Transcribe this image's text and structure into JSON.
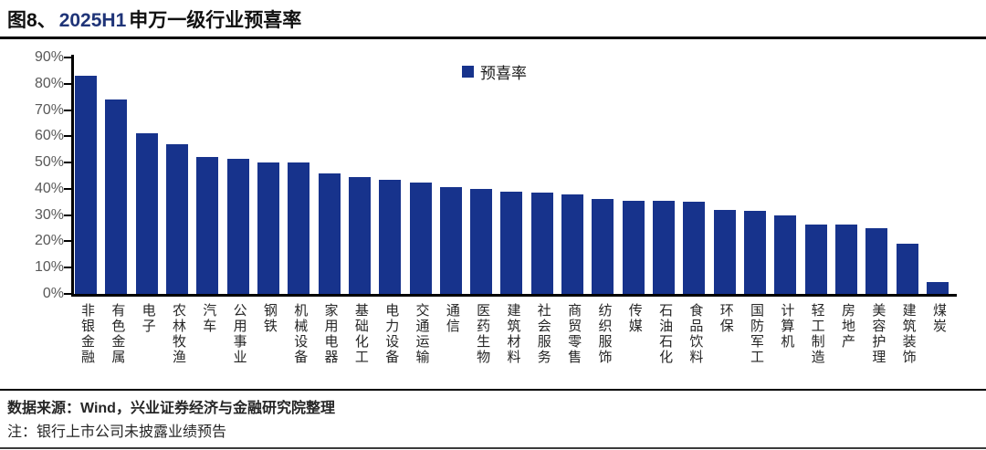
{
  "header": {
    "title_prefix": "图8、",
    "title_highlight": "2025H1",
    "title_suffix": "申万一级行业预喜率"
  },
  "chart_data": {
    "type": "bar",
    "title": "图8、2025H1 申万一级行业预喜率",
    "legend_label": "预喜率",
    "legend_position": "top-center",
    "bar_color": "#17338c",
    "grid": false,
    "ylim": [
      0,
      90
    ],
    "ytick_labels": [
      "0%",
      "10%",
      "20%",
      "30%",
      "40%",
      "50%",
      "60%",
      "70%",
      "80%",
      "90%"
    ],
    "categories": [
      "非银金融",
      "有色金属",
      "电子",
      "农林牧渔",
      "汽车",
      "公用事业",
      "钢铁",
      "机械设备",
      "家用电器",
      "基础化工",
      "电力设备",
      "交通运输",
      "通信",
      "医药生物",
      "建筑材料",
      "社会服务",
      "商贸零售",
      "纺织服饰",
      "传媒",
      "石油石化",
      "食品饮料",
      "环保",
      "国防军工",
      "计算机",
      "轻工制造",
      "房地产",
      "美容护理",
      "建筑装饰",
      "煤炭"
    ],
    "values": [
      83,
      74,
      61,
      57,
      52,
      51.5,
      50,
      50,
      46,
      44.5,
      43.5,
      42.5,
      40.5,
      40,
      39,
      38.5,
      38,
      36,
      35.5,
      35.3,
      35,
      32,
      31.5,
      30,
      26.5,
      26.3,
      25,
      19,
      4.5
    ]
  },
  "footer": {
    "source": "数据来源：Wind，兴业证券经济与金融研究院整理",
    "note": "注：银行上市公司未披露业绩预告"
  }
}
